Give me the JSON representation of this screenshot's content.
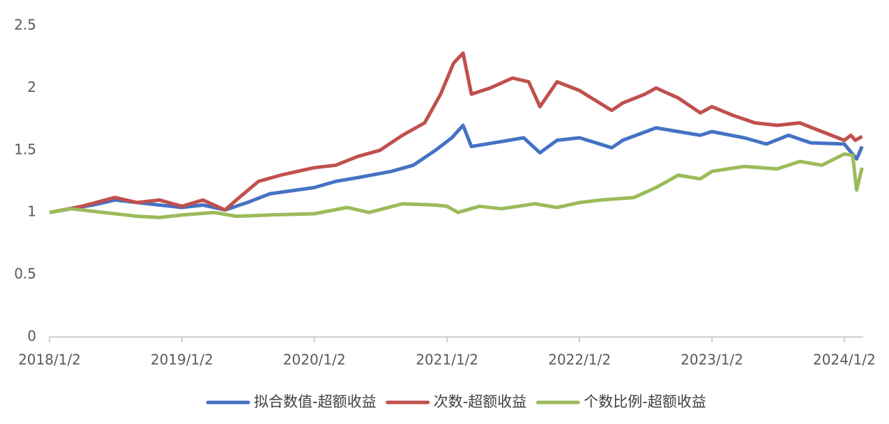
{
  "chart_data": {
    "type": "line",
    "xlim": [
      "2018/1/2",
      "2024/2/23"
    ],
    "xticks": [
      "2018/1/2",
      "2019/1/2",
      "2020/1/2",
      "2021/1/2",
      "2022/1/2",
      "2023/1/2",
      "2024/1/2"
    ],
    "ylim": [
      0,
      2.5
    ],
    "yticks": [
      0,
      0.5,
      1,
      1.5,
      2,
      2.5
    ],
    "grid": false,
    "legend": "bottom",
    "series": [
      {
        "name": "拟合数值-超额收益",
        "color": "#4472c4",
        "x": [
          "2018/1/2",
          "2018/5/1",
          "2018/7/1",
          "2018/10/1",
          "2019/1/2",
          "2019/3/1",
          "2019/5/1",
          "2019/7/1",
          "2019/9/1",
          "2020/1/2",
          "2020/3/1",
          "2020/5/1",
          "2020/8/1",
          "2020/10/1",
          "2020/12/1",
          "2021/1/15",
          "2021/2/15",
          "2021/3/10",
          "2021/6/1",
          "2021/8/1",
          "2021/9/15",
          "2021/11/1",
          "2022/1/2",
          "2022/4/1",
          "2022/5/1",
          "2022/8/1",
          "2022/10/1",
          "2022/12/1",
          "2023/1/2",
          "2023/4/1",
          "2023/6/1",
          "2023/8/1",
          "2023/10/1",
          "2024/1/2",
          "2024/2/5",
          "2024/2/20"
        ],
        "values": [
          1.0,
          1.06,
          1.1,
          1.07,
          1.04,
          1.06,
          1.02,
          1.08,
          1.15,
          1.2,
          1.25,
          1.28,
          1.33,
          1.38,
          1.5,
          1.6,
          1.7,
          1.53,
          1.57,
          1.6,
          1.48,
          1.58,
          1.6,
          1.52,
          1.58,
          1.68,
          1.65,
          1.62,
          1.65,
          1.6,
          1.55,
          1.62,
          1.56,
          1.55,
          1.43,
          1.53
        ]
      },
      {
        "name": "次数-超额收益",
        "color": "#c0504d",
        "x": [
          "2018/1/2",
          "2018/4/1",
          "2018/7/1",
          "2018/9/1",
          "2018/11/1",
          "2019/1/2",
          "2019/3/1",
          "2019/5/1",
          "2019/6/1",
          "2019/8/1",
          "2019/10/1",
          "2020/1/2",
          "2020/3/1",
          "2020/5/1",
          "2020/7/1",
          "2020/9/1",
          "2020/11/1",
          "2020/12/15",
          "2021/1/20",
          "2021/2/15",
          "2021/3/10",
          "2021/5/1",
          "2021/7/1",
          "2021/8/15",
          "2021/9/15",
          "2021/11/1",
          "2022/1/2",
          "2022/2/15",
          "2022/4/1",
          "2022/5/1",
          "2022/7/1",
          "2022/8/1",
          "2022/10/1",
          "2022/12/1",
          "2023/1/2",
          "2023/3/1",
          "2023/5/1",
          "2023/7/1",
          "2023/9/1",
          "2023/11/1",
          "2024/1/2",
          "2024/1/20",
          "2024/2/1",
          "2024/2/20"
        ],
        "values": [
          1.0,
          1.05,
          1.12,
          1.08,
          1.1,
          1.05,
          1.1,
          1.02,
          1.1,
          1.25,
          1.3,
          1.36,
          1.38,
          1.45,
          1.5,
          1.62,
          1.72,
          1.95,
          2.2,
          2.28,
          1.95,
          2.0,
          2.08,
          2.05,
          1.85,
          2.05,
          1.98,
          1.9,
          1.82,
          1.88,
          1.95,
          2.0,
          1.92,
          1.8,
          1.85,
          1.78,
          1.72,
          1.7,
          1.72,
          1.65,
          1.58,
          1.62,
          1.58,
          1.61
        ]
      },
      {
        "name": "个数比例-超额收益",
        "color": "#9bbb59",
        "x": [
          "2018/1/2",
          "2018/3/1",
          "2018/6/1",
          "2018/9/1",
          "2018/11/1",
          "2019/1/2",
          "2019/4/1",
          "2019/6/1",
          "2019/9/1",
          "2020/1/2",
          "2020/4/1",
          "2020/6/1",
          "2020/9/1",
          "2020/12/1",
          "2021/1/2",
          "2021/2/1",
          "2021/4/1",
          "2021/6/1",
          "2021/9/1",
          "2021/11/1",
          "2022/1/2",
          "2022/3/1",
          "2022/6/1",
          "2022/8/1",
          "2022/10/1",
          "2022/12/1",
          "2023/1/2",
          "2023/4/1",
          "2023/7/1",
          "2023/9/1",
          "2023/11/1",
          "2024/1/2",
          "2024/1/25",
          "2024/2/5",
          "2024/2/20"
        ],
        "values": [
          1.0,
          1.03,
          1.0,
          0.97,
          0.96,
          0.98,
          1.0,
          0.97,
          0.98,
          0.99,
          1.04,
          1.0,
          1.07,
          1.06,
          1.05,
          1.0,
          1.05,
          1.03,
          1.07,
          1.04,
          1.08,
          1.1,
          1.12,
          1.2,
          1.3,
          1.27,
          1.33,
          1.37,
          1.35,
          1.41,
          1.38,
          1.47,
          1.46,
          1.18,
          1.36
        ]
      }
    ]
  }
}
